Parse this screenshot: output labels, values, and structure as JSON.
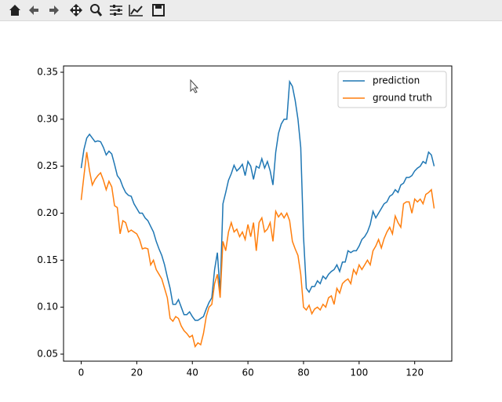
{
  "chart_data": {
    "type": "line",
    "x": [
      0,
      1,
      2,
      3,
      4,
      5,
      6,
      7,
      8,
      9,
      10,
      11,
      12,
      13,
      14,
      15,
      16,
      17,
      18,
      19,
      20,
      21,
      22,
      23,
      24,
      25,
      26,
      27,
      28,
      29,
      30,
      31,
      32,
      33,
      34,
      35,
      36,
      37,
      38,
      39,
      40,
      41,
      42,
      43,
      44,
      45,
      46,
      47,
      48,
      49,
      50,
      51,
      52,
      53,
      54,
      55,
      56,
      57,
      58,
      59,
      60,
      61,
      62,
      63,
      64,
      65,
      66,
      67,
      68,
      69,
      70,
      71,
      72,
      73,
      74,
      75,
      76,
      77,
      78,
      79,
      80,
      81,
      82,
      83,
      84,
      85,
      86,
      87,
      88,
      89,
      90,
      91,
      92,
      93,
      94,
      95,
      96,
      97,
      98,
      99,
      100,
      101,
      102,
      103,
      104,
      105,
      106,
      107,
      108,
      109,
      110,
      111,
      112,
      113,
      114,
      115,
      116,
      117,
      118,
      119,
      120,
      121,
      122,
      123,
      124,
      125,
      126,
      127
    ],
    "series": [
      {
        "name": "prediction",
        "color": "#1f77b4",
        "values": [
          0.248,
          0.268,
          0.28,
          0.284,
          0.28,
          0.276,
          0.277,
          0.276,
          0.27,
          0.262,
          0.266,
          0.263,
          0.252,
          0.24,
          0.236,
          0.228,
          0.222,
          0.219,
          0.218,
          0.21,
          0.205,
          0.2,
          0.2,
          0.195,
          0.192,
          0.186,
          0.18,
          0.17,
          0.162,
          0.155,
          0.145,
          0.132,
          0.12,
          0.103,
          0.103,
          0.108,
          0.1,
          0.092,
          0.092,
          0.095,
          0.09,
          0.086,
          0.086,
          0.088,
          0.09,
          0.098,
          0.105,
          0.11,
          0.14,
          0.158,
          0.115,
          0.21,
          0.222,
          0.235,
          0.242,
          0.251,
          0.245,
          0.248,
          0.252,
          0.24,
          0.255,
          0.25,
          0.236,
          0.25,
          0.248,
          0.258,
          0.248,
          0.255,
          0.245,
          0.23,
          0.265,
          0.285,
          0.295,
          0.3,
          0.3,
          0.34,
          0.335,
          0.32,
          0.3,
          0.27,
          0.175,
          0.12,
          0.116,
          0.122,
          0.122,
          0.128,
          0.125,
          0.133,
          0.13,
          0.135,
          0.138,
          0.14,
          0.145,
          0.138,
          0.148,
          0.148,
          0.16,
          0.158,
          0.16,
          0.16,
          0.165,
          0.172,
          0.175,
          0.18,
          0.188,
          0.202,
          0.195,
          0.2,
          0.205,
          0.21,
          0.212,
          0.218,
          0.22,
          0.225,
          0.222,
          0.23,
          0.232,
          0.238,
          0.238,
          0.24,
          0.245,
          0.248,
          0.25,
          0.255,
          0.253,
          0.265,
          0.262,
          0.25
        ]
      },
      {
        "name": "ground truth",
        "color": "#ff7f0e",
        "values": [
          0.214,
          0.24,
          0.265,
          0.245,
          0.23,
          0.236,
          0.24,
          0.243,
          0.235,
          0.225,
          0.234,
          0.228,
          0.208,
          0.206,
          0.178,
          0.192,
          0.19,
          0.18,
          0.182,
          0.18,
          0.178,
          0.172,
          0.162,
          0.163,
          0.162,
          0.145,
          0.15,
          0.14,
          0.135,
          0.13,
          0.12,
          0.11,
          0.088,
          0.085,
          0.09,
          0.088,
          0.08,
          0.075,
          0.072,
          0.068,
          0.07,
          0.058,
          0.062,
          0.06,
          0.072,
          0.09,
          0.1,
          0.103,
          0.125,
          0.135,
          0.11,
          0.17,
          0.16,
          0.18,
          0.19,
          0.18,
          0.183,
          0.175,
          0.18,
          0.172,
          0.188,
          0.175,
          0.19,
          0.16,
          0.19,
          0.195,
          0.18,
          0.183,
          0.19,
          0.17,
          0.202,
          0.196,
          0.2,
          0.195,
          0.2,
          0.192,
          0.17,
          0.162,
          0.155,
          0.135,
          0.1,
          0.097,
          0.102,
          0.093,
          0.098,
          0.1,
          0.097,
          0.103,
          0.1,
          0.11,
          0.112,
          0.103,
          0.12,
          0.115,
          0.125,
          0.128,
          0.13,
          0.125,
          0.14,
          0.135,
          0.145,
          0.14,
          0.145,
          0.15,
          0.145,
          0.16,
          0.165,
          0.172,
          0.163,
          0.173,
          0.18,
          0.185,
          0.178,
          0.197,
          0.19,
          0.185,
          0.21,
          0.212,
          0.212,
          0.2,
          0.215,
          0.212,
          0.215,
          0.21,
          0.22,
          0.222,
          0.225,
          0.205
        ]
      }
    ],
    "xlim": [
      -6.35,
      133.35
    ],
    "ylim": [
      0.0425,
      0.3567
    ],
    "xticks": [
      0,
      20,
      40,
      60,
      80,
      100,
      120
    ],
    "yticks": [
      0.05,
      {
        "value": 0.1,
        "label": "0.10"
      },
      0.15,
      {
        "value": 0.2,
        "label": "0.20"
      },
      0.25,
      {
        "value": 0.3,
        "label": "0.30"
      },
      0.35
    ],
    "legend": "upper right"
  }
}
